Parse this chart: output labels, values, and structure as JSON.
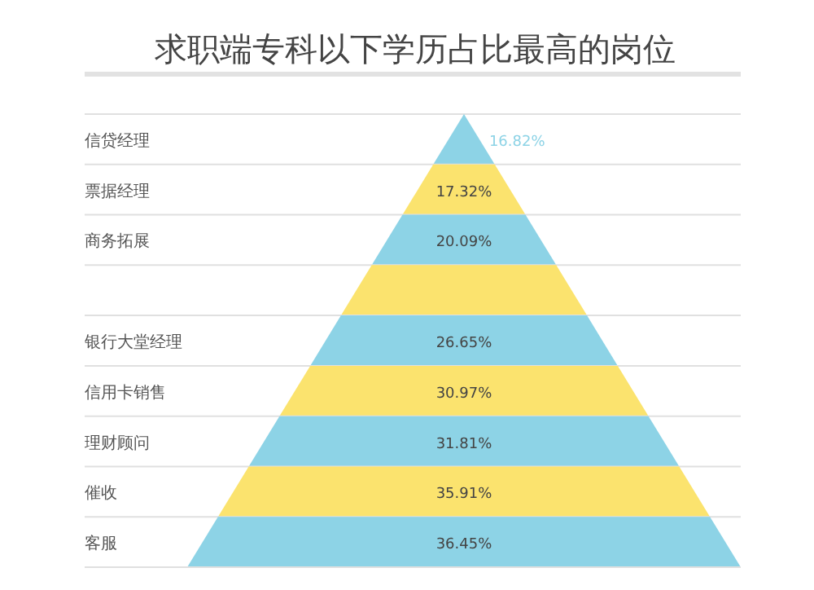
{
  "chart_data": {
    "type": "other",
    "title": "求职端专科以下学历占比最高的岗位",
    "categories": [
      "信贷经理",
      "票据经理",
      "商务拓展",
      null,
      "银行大堂经理",
      "信用卡销售",
      "理财顾问",
      "催收",
      "客服"
    ],
    "colors": [
      "#8dd3e6",
      "#fbe36e",
      "#8dd3e6",
      "#fbe36e",
      "#8dd3e6",
      "#fbe36e",
      "#8dd3e6",
      "#fbe36e",
      "#8dd3e6"
    ],
    "values": [
      16.82,
      17.32,
      20.09,
      null,
      26.65,
      30.97,
      31.81,
      35.91,
      36.45
    ],
    "value_labels": [
      "16.82%",
      "17.32%",
      "20.09%",
      null,
      "26.65%",
      "30.97%",
      "31.81%",
      "35.91%",
      "36.45%"
    ]
  }
}
